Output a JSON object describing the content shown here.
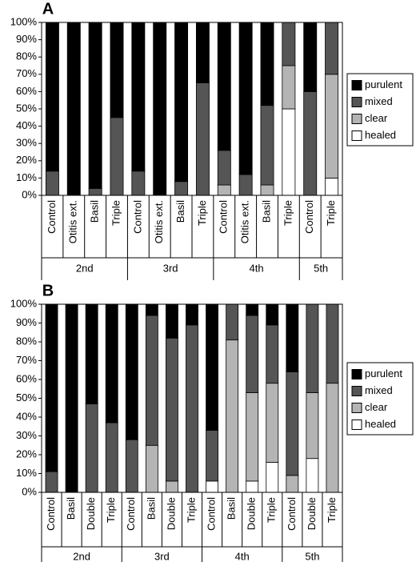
{
  "chart_data": [
    {
      "type": "bar",
      "stacked": true,
      "panel_label": "A",
      "groups": [
        {
          "label": "2nd",
          "categories": [
            "Control",
            "Otitis ext.",
            "Basil",
            "Triple"
          ]
        },
        {
          "label": "3rd",
          "categories": [
            "Control",
            "Otitis ext.",
            "Basil",
            "Triple"
          ]
        },
        {
          "label": "4th",
          "categories": [
            "Control",
            "Otitis ext.",
            "Basil",
            "Triple"
          ]
        },
        {
          "label": "5th",
          "categories": [
            "Control",
            "Triple"
          ]
        }
      ],
      "series": [
        {
          "name": "healed",
          "color": "#ffffff",
          "values": [
            0,
            0,
            0,
            0,
            0,
            0,
            0,
            0,
            0,
            0,
            0,
            50,
            0,
            10
          ]
        },
        {
          "name": "clear",
          "color": "#b4b4b4",
          "values": [
            0,
            0,
            0,
            0,
            0,
            0,
            0,
            0,
            6,
            0,
            6,
            25,
            0,
            60
          ]
        },
        {
          "name": "mixed",
          "color": "#555555",
          "values": [
            14,
            0,
            4,
            45,
            14,
            0,
            8,
            65,
            20,
            12,
            46,
            25,
            60,
            30
          ]
        },
        {
          "name": "purulent",
          "color": "#000000",
          "values": [
            86,
            100,
            96,
            55,
            86,
            100,
            92,
            35,
            74,
            88,
            48,
            0,
            40,
            0
          ]
        }
      ],
      "ylim": [
        0,
        100
      ],
      "yticks": [
        {
          "value": 0,
          "label": "0%"
        },
        {
          "value": 10,
          "label": "10%"
        },
        {
          "value": 20,
          "label": "20%"
        },
        {
          "value": 30,
          "label": "30%"
        },
        {
          "value": 40,
          "label": "40%"
        },
        {
          "value": 50,
          "label": "50%"
        },
        {
          "value": 60,
          "label": "60%"
        },
        {
          "value": 70,
          "label": "70%"
        },
        {
          "value": 80,
          "label": "80%"
        },
        {
          "value": 90,
          "label": "90%"
        },
        {
          "value": 100,
          "label": "100%"
        }
      ]
    },
    {
      "type": "bar",
      "stacked": true,
      "panel_label": "B",
      "groups": [
        {
          "label": "2nd",
          "categories": [
            "Control",
            "Basil",
            "Double",
            "Triple"
          ]
        },
        {
          "label": "3rd",
          "categories": [
            "Control",
            "Basil",
            "Double",
            "Triple"
          ]
        },
        {
          "label": "4th",
          "categories": [
            "Control",
            "Basil",
            "Double",
            "Triple"
          ]
        },
        {
          "label": "5th",
          "categories": [
            "Control",
            "Double",
            "Triple"
          ]
        }
      ],
      "series": [
        {
          "name": "healed",
          "color": "#ffffff",
          "values": [
            0,
            0,
            0,
            0,
            0,
            0,
            0,
            0,
            6,
            0,
            6,
            16,
            0,
            18,
            0
          ]
        },
        {
          "name": "clear",
          "color": "#b4b4b4",
          "values": [
            0,
            0,
            0,
            0,
            0,
            25,
            6,
            0,
            0,
            81,
            47,
            42,
            9,
            35,
            58
          ]
        },
        {
          "name": "mixed",
          "color": "#555555",
          "values": [
            11,
            0,
            47,
            37,
            28,
            69,
            76,
            89,
            27,
            19,
            41,
            31,
            55,
            47,
            42
          ]
        },
        {
          "name": "purulent",
          "color": "#000000",
          "values": [
            89,
            100,
            53,
            63,
            72,
            6,
            18,
            11,
            67,
            0,
            6,
            11,
            36,
            0,
            0
          ]
        }
      ],
      "ylim": [
        0,
        100
      ],
      "yticks": [
        {
          "value": 0,
          "label": "0%"
        },
        {
          "value": 10,
          "label": "10%"
        },
        {
          "value": 20,
          "label": "20%"
        },
        {
          "value": 30,
          "label": "30%"
        },
        {
          "value": 40,
          "label": "40%"
        },
        {
          "value": 50,
          "label": "50%"
        },
        {
          "value": 60,
          "label": "60%"
        },
        {
          "value": 70,
          "label": "70%"
        },
        {
          "value": 80,
          "label": "80%"
        },
        {
          "value": 90,
          "label": "90%"
        },
        {
          "value": 100,
          "label": "100%"
        }
      ]
    }
  ]
}
